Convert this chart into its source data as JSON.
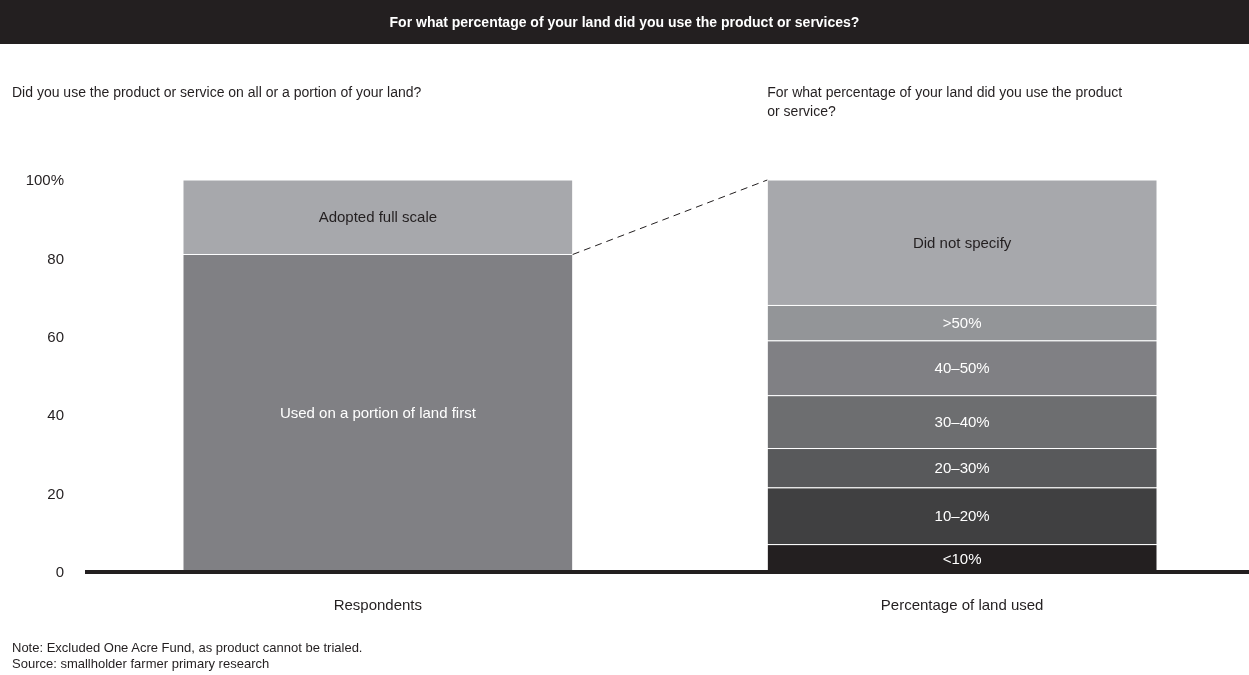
{
  "chart_data": {
    "type": "bar",
    "stacked": true,
    "title": "For what percentage of your land did you use the product or services?",
    "subtitle": "Did you use the product or service on all or a portion of your land?",
    "categories": [
      "Respondents",
      "Percentage of land used"
    ],
    "series": [
      {
        "name": "Used on a portion of land first",
        "color": "#808084",
        "values": [
          81,
          null
        ]
      },
      {
        "name": "Adopted full scale",
        "color": "#a7a8ac",
        "values": [
          19,
          null
        ]
      },
      {
        "name": "<10%",
        "color": "#231f20",
        "values": [
          null,
          7
        ]
      },
      {
        "name": "10–20%",
        "color": "#404041",
        "values": [
          null,
          14.5
        ]
      },
      {
        "name": "20–30%",
        "color": "#58595b",
        "values": [
          null,
          10
        ]
      },
      {
        "name": "30–40%",
        "color": "#6d6e70",
        "values": [
          null,
          13.5
        ]
      },
      {
        "name": "40–50%",
        "color": "#808084",
        "values": [
          null,
          14
        ]
      },
      {
        "name": ">50%",
        "color": "#939598",
        "values": [
          null,
          9
        ]
      },
      {
        "name": "Did not specify",
        "color": "#a7a8ac",
        "values": [
          null,
          32
        ]
      }
    ],
    "ylim": [
      0,
      100
    ],
    "yticks": [
      0,
      20,
      40,
      60,
      80,
      {
        "value": 100,
        "label": "100%"
      }
    ],
    "annotations": [
      "For what percentage of your land did you use the product or service?",
      "Note: Excluded One Acre Fund, as product cannot be trialed.",
      "Source: smallholder farmer primary research"
    ]
  }
}
